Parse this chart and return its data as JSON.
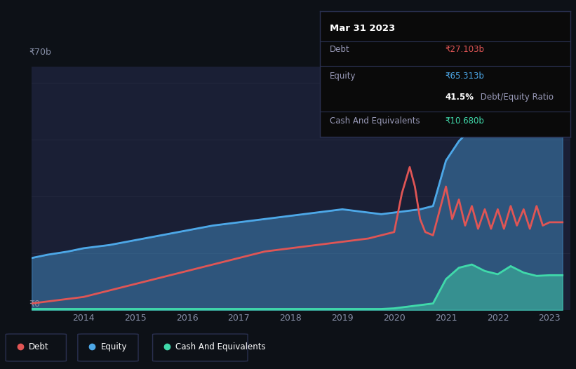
{
  "bg_color": "#0d1117",
  "plot_bg_color": "#1a1f35",
  "grid_color": "#252a40",
  "ylim": [
    0,
    70
  ],
  "ylabel_top": "₹70b",
  "ylabel_bottom": "₹0",
  "x_tick_labels": [
    "2014",
    "2015",
    "2016",
    "2017",
    "2018",
    "2019",
    "2020",
    "2021",
    "2022",
    "2023"
  ],
  "x_tick_vals": [
    2014,
    2015,
    2016,
    2017,
    2018,
    2019,
    2020,
    2021,
    2022,
    2023
  ],
  "tooltip_title": "Mar 31 2023",
  "tooltip_debt_label": "Debt",
  "tooltip_debt_value": "₹27.103b",
  "tooltip_equity_label": "Equity",
  "tooltip_equity_value": "₹65.313b",
  "tooltip_ratio_bold": "41.5%",
  "tooltip_ratio_plain": " Debt/Equity Ratio",
  "tooltip_cash_label": "Cash And Equivalents",
  "tooltip_cash_value": "₹10.680b",
  "debt_color": "#e05555",
  "equity_color": "#4da8e8",
  "cash_color": "#40d9aa",
  "legend_border": "#2a3050",
  "equity_x": [
    2013.0,
    2013.3,
    2013.7,
    2014.0,
    2014.5,
    2015.0,
    2015.5,
    2016.0,
    2016.5,
    2017.0,
    2017.5,
    2018.0,
    2018.5,
    2019.0,
    2019.25,
    2019.5,
    2019.75,
    2020.0,
    2020.25,
    2020.5,
    2020.75,
    2021.0,
    2021.25,
    2021.5,
    2021.75,
    2022.0,
    2022.25,
    2022.5,
    2022.75,
    2023.0,
    2023.25
  ],
  "equity_y": [
    16,
    17,
    18,
    19,
    20,
    21.5,
    23,
    24.5,
    26,
    27,
    28,
    29,
    30,
    31,
    30.5,
    30,
    29.5,
    30,
    30.5,
    31,
    32,
    46,
    52,
    56,
    58,
    59,
    61,
    62,
    63,
    65.3,
    66
  ],
  "debt_x": [
    2013.0,
    2013.5,
    2014.0,
    2014.5,
    2015.0,
    2015.5,
    2016.0,
    2016.5,
    2017.0,
    2017.5,
    2018.0,
    2018.5,
    2019.0,
    2019.5,
    2019.75,
    2020.0,
    2020.15,
    2020.3,
    2020.4,
    2020.5,
    2020.6,
    2020.75,
    2021.0,
    2021.12,
    2021.25,
    2021.37,
    2021.5,
    2021.62,
    2021.75,
    2021.87,
    2022.0,
    2022.12,
    2022.25,
    2022.37,
    2022.5,
    2022.62,
    2022.75,
    2022.87,
    2023.0,
    2023.25
  ],
  "debt_y": [
    2,
    3,
    4,
    6,
    8,
    10,
    12,
    14,
    16,
    18,
    19,
    20,
    21,
    22,
    23,
    24,
    36,
    44,
    38,
    28,
    24,
    23,
    38,
    28,
    34,
    26,
    32,
    25,
    31,
    25,
    31,
    25,
    32,
    26,
    31,
    25,
    32,
    26,
    27,
    27
  ],
  "cash_x": [
    2013.0,
    2013.5,
    2014.0,
    2014.5,
    2015.0,
    2015.5,
    2016.0,
    2016.5,
    2017.0,
    2017.5,
    2018.0,
    2018.5,
    2019.0,
    2019.5,
    2019.75,
    2020.0,
    2020.25,
    2020.5,
    2020.75,
    2021.0,
    2021.25,
    2021.5,
    2021.75,
    2022.0,
    2022.25,
    2022.5,
    2022.75,
    2023.0,
    2023.25
  ],
  "cash_y": [
    0.3,
    0.3,
    0.3,
    0.3,
    0.3,
    0.3,
    0.3,
    0.3,
    0.3,
    0.3,
    0.3,
    0.3,
    0.3,
    0.3,
    0.3,
    0.5,
    1.0,
    1.5,
    2.0,
    9.5,
    13,
    14,
    12,
    11,
    13.5,
    11.5,
    10.5,
    10.7,
    10.7
  ]
}
